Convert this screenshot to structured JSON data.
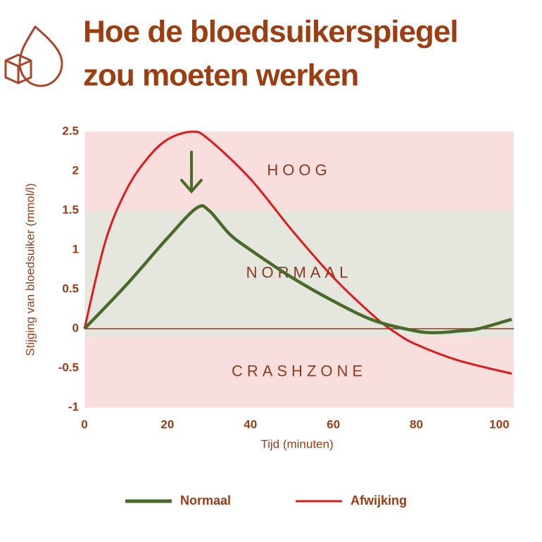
{
  "chart_data": {
    "type": "line",
    "title": [
      "Hoe de bloedsuikerspiegel",
      "zou moeten werken"
    ],
    "x_label": "Tijd (minuten)",
    "y_label": "Stijging van bloedsuiker (mmol/l)",
    "xlim": [
      0,
      103.5
    ],
    "ylim": [
      -1,
      2.5
    ],
    "xticks": [
      0,
      20,
      40,
      60,
      80,
      100
    ],
    "yticks": [
      -1,
      -0.5,
      0,
      0.5,
      1,
      1.5,
      2,
      2.5
    ],
    "zones": [
      {
        "label": "HOOG",
        "from": 1.5,
        "to": 2.5,
        "color": "#f9dede"
      },
      {
        "label": "NORMAAL",
        "from": -0.1,
        "to": 1.5,
        "color": "#e5e6de"
      },
      {
        "label": "CRASHZONE",
        "from": -1,
        "to": -0.1,
        "color": "#f9dede"
      }
    ],
    "series": [
      {
        "name": "Normaal",
        "color": "#4a6a2a",
        "x": [
          0,
          10,
          20,
          27,
          30,
          35,
          40,
          50,
          60,
          70,
          80,
          85,
          90,
          95,
          103
        ],
        "values": [
          0,
          0.55,
          1.15,
          1.53,
          1.5,
          1.2,
          1.0,
          0.65,
          0.35,
          0.1,
          -0.03,
          -0.05,
          -0.03,
          0.0,
          0.12
        ]
      },
      {
        "name": "Afwijking",
        "color": "#e01a1a",
        "x": [
          0,
          5,
          10,
          15,
          20,
          26,
          30,
          40,
          50,
          60,
          70,
          75,
          80,
          90,
          103
        ],
        "values": [
          0,
          1.1,
          1.75,
          2.15,
          2.4,
          2.5,
          2.4,
          1.9,
          1.25,
          0.65,
          0.15,
          -0.05,
          -0.2,
          -0.4,
          -0.57
        ]
      }
    ]
  }
}
